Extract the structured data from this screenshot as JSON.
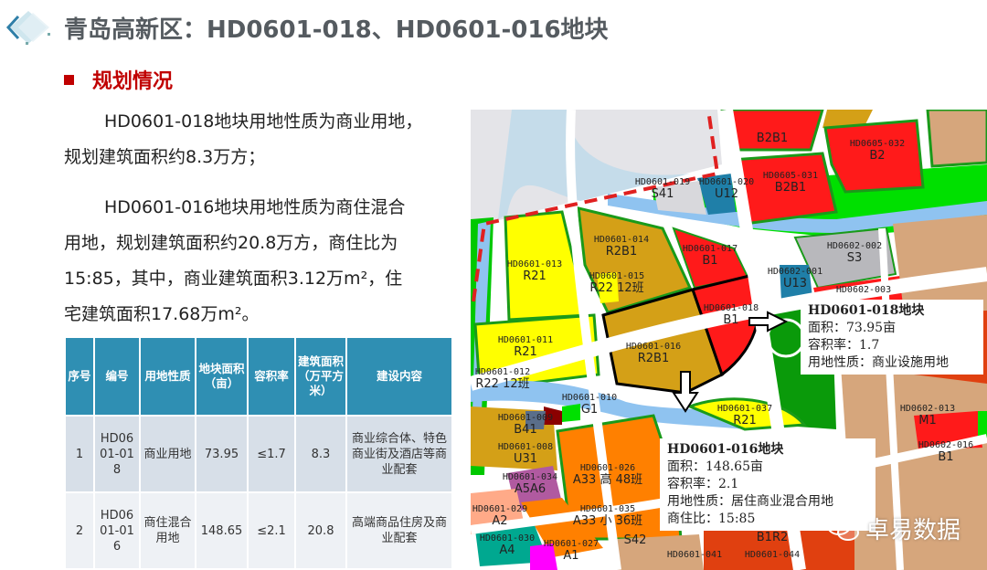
{
  "header": {
    "title": "青岛高新区：HD0601-018、HD0601-016地块",
    "logo_icon": "diamond-logo-icon"
  },
  "section": {
    "heading": "规划情况",
    "accent": "#c00000"
  },
  "paragraph1": {
    "lines": [
      "HD0601-018地块用地性质为商业用地，",
      "规划建筑面积约8.3万方；"
    ]
  },
  "paragraph2": {
    "lines": [
      "HD0601-016地块用地性质为商住混合",
      "用地，规划建筑面积约20.8万方，商住比为",
      "15:85，其中，商业建筑面积3.12万m²，住",
      "宅建筑面积17.68万m²。"
    ]
  },
  "table": {
    "headers": [
      "序号",
      "编号",
      "用地性质",
      "地块面积（亩）",
      "容积率",
      "建筑面积（万平方米）",
      "建设内容"
    ],
    "rows": [
      [
        "1",
        "HD0601-018",
        "商业用地",
        "73.95",
        "≤1.7",
        "8.3",
        "商业综合体、特色商业街及酒店等商业配套"
      ],
      [
        "2",
        "HD0601-016",
        "商住混合用地",
        "148.65",
        "≤2.1",
        "20.8",
        "高端商品住房及商业配套"
      ]
    ]
  },
  "map": {
    "parcels": [
      {
        "id": "HD0601-013",
        "code": "R21"
      },
      {
        "id": "HD0601-014",
        "code": "R2B1"
      },
      {
        "id": "HD0601-015",
        "code": "R22 12班"
      },
      {
        "id": "HD0601-017",
        "code": "B1"
      },
      {
        "id": "HD0601-018",
        "code": "B1"
      },
      {
        "id": "HD0601-016",
        "code": "R2B1"
      },
      {
        "id": "HD0601-011",
        "code": "R21"
      },
      {
        "id": "HD0601-012",
        "code": "R22 12班"
      },
      {
        "id": "HD0601-019",
        "code": "S41"
      },
      {
        "id": "HD0601-020",
        "code": "U12"
      },
      {
        "id": "HD0605-031",
        "code": "B2B1"
      },
      {
        "id": "HD0605-032",
        "code": "B2"
      },
      {
        "id": "HD0602-001",
        "code": "U13"
      },
      {
        "id": "HD0602-002",
        "code": "S3"
      },
      {
        "id": "HD0602-003",
        "code": ""
      },
      {
        "id": "HD0601-037",
        "code": "R21"
      },
      {
        "id": "HD0601-026",
        "code": "A33 高 48班"
      },
      {
        "id": "HD0601-034",
        "code": "A5A6"
      },
      {
        "id": "HD0601-035",
        "code": "A33 小 36班"
      },
      {
        "id": "HD0601-029",
        "code": "A2"
      },
      {
        "id": "HD0601-030",
        "code": "A4"
      },
      {
        "id": "HD0601-027",
        "code": "A1"
      },
      {
        "id": "HD0601-010",
        "code": "G1"
      },
      {
        "id": "HD0601-009",
        "code": "B41"
      },
      {
        "id": "HD0601-008",
        "code": "U31"
      },
      {
        "id": "HD0602-013",
        "code": "M1"
      },
      {
        "id": "HD0602-016",
        "code": "B1"
      },
      {
        "id": "HD0601-041",
        "code": ""
      },
      {
        "id": "HD0601-044",
        "code": ""
      },
      {
        "id": "",
        "code": "B1R2"
      },
      {
        "id": "",
        "code": "S42"
      },
      {
        "id": "",
        "code": "B2B1"
      }
    ],
    "callout_018": {
      "title": "HD0601-018地块",
      "area": "面积：73.95亩",
      "far": "容积率：1.7",
      "use": "用地性质：商业设施用地"
    },
    "callout_016": {
      "title": "HD0601-016地块",
      "area": "面积：148.65亩",
      "far": "容积率：2.1",
      "use": "用地性质：居住商业混合用地",
      "ratio": "商住比：15:85"
    },
    "colors": {
      "commercial": "#ff1a1a",
      "residential": "#ffff00",
      "mixed": "#d4a017",
      "green": "#00e000",
      "water": "#8fc3f0",
      "industrial": "#d6a67c",
      "education": "#ff8000"
    }
  },
  "watermark": {
    "text": "卓易数据",
    "icon": "wechat-icon"
  }
}
